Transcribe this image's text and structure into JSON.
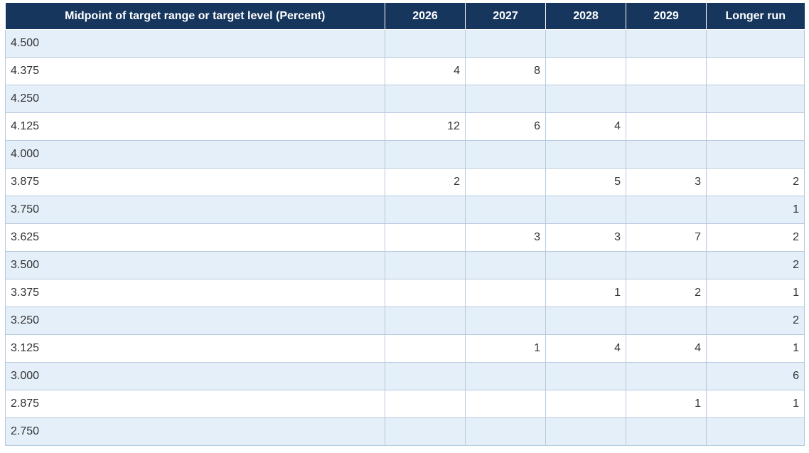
{
  "table": {
    "headers": [
      "Midpoint of target range or target level (Percent)",
      "2026",
      "2027",
      "2028",
      "2029",
      "Longer run"
    ],
    "rows": [
      {
        "label": "4.500",
        "values": [
          "",
          "",
          "",
          "",
          ""
        ]
      },
      {
        "label": "4.375",
        "values": [
          "4",
          "8",
          "",
          "",
          ""
        ]
      },
      {
        "label": "4.250",
        "values": [
          "",
          "",
          "",
          "",
          ""
        ]
      },
      {
        "label": "4.125",
        "values": [
          "12",
          "6",
          "4",
          "",
          ""
        ]
      },
      {
        "label": "4.000",
        "values": [
          "",
          "",
          "",
          "",
          ""
        ]
      },
      {
        "label": "3.875",
        "values": [
          "2",
          "",
          "5",
          "3",
          "2"
        ]
      },
      {
        "label": "3.750",
        "values": [
          "",
          "",
          "",
          "",
          "1"
        ]
      },
      {
        "label": "3.625",
        "values": [
          "",
          "3",
          "3",
          "7",
          "2"
        ]
      },
      {
        "label": "3.500",
        "values": [
          "",
          "",
          "",
          "",
          "2"
        ]
      },
      {
        "label": "3.375",
        "values": [
          "",
          "",
          "1",
          "2",
          "1"
        ]
      },
      {
        "label": "3.250",
        "values": [
          "",
          "",
          "",
          "",
          "2"
        ]
      },
      {
        "label": "3.125",
        "values": [
          "",
          "1",
          "4",
          "4",
          "1"
        ]
      },
      {
        "label": "3.000",
        "values": [
          "",
          "",
          "",
          "",
          "6"
        ]
      },
      {
        "label": "2.875",
        "values": [
          "",
          "",
          "",
          "1",
          "1"
        ]
      },
      {
        "label": "2.750",
        "values": [
          "",
          "",
          "",
          "",
          ""
        ]
      }
    ]
  },
  "colors": {
    "header_bg": "#17365d",
    "header_text": "#ffffff",
    "row_alt_bg": "#e5eff9",
    "row_bg": "#ffffff",
    "grid_line": "#b7c9dd"
  }
}
